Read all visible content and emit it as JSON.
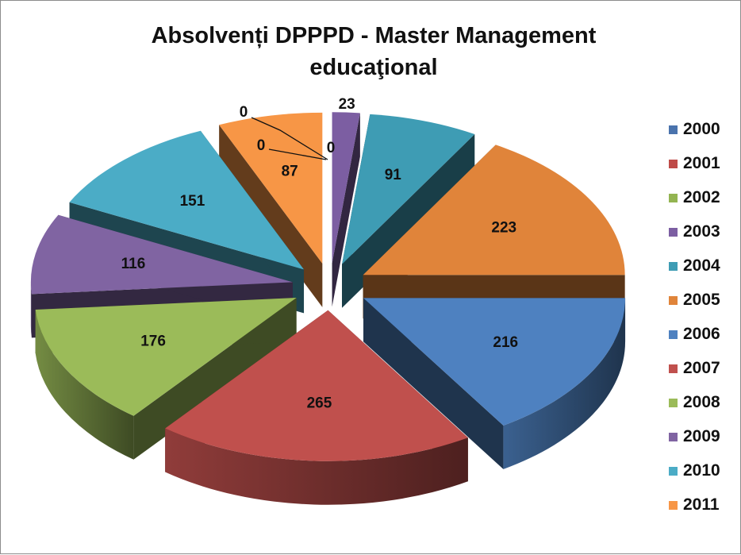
{
  "chart_data": {
    "type": "pie",
    "title": "Absolvenți DPPPD - Master Management educaţional",
    "categories": [
      "2000",
      "2001",
      "2002",
      "2003",
      "2004",
      "2005",
      "2006",
      "2007",
      "2008",
      "2009",
      "2010",
      "2011"
    ],
    "values": [
      0,
      0,
      0,
      23,
      91,
      223,
      216,
      265,
      176,
      116,
      151,
      87
    ],
    "colors": [
      "#4a73ad",
      "#bf4b48",
      "#93b451",
      "#7c5ea2",
      "#3e9cb4",
      "#e0843a",
      "#4e81c0",
      "#c0504d",
      "#9bbb59",
      "#8064a2",
      "#4bacc6",
      "#f79646"
    ],
    "legend": "right",
    "style": "3d-exploded"
  }
}
